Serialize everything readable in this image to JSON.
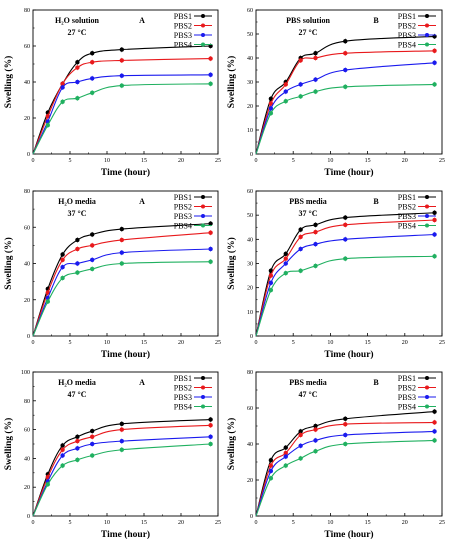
{
  "figure": {
    "chart_data": [
      {
        "type": "line",
        "panel_letter": "A",
        "annotation": [
          "H₂O solution",
          "27 °C"
        ],
        "xlabel": "Time (hour)",
        "ylabel": "Swelling (%)",
        "xlim": [
          0,
          25
        ],
        "ylim": [
          0,
          80
        ],
        "x_ticks": [
          0,
          5,
          10,
          15,
          20,
          25
        ],
        "y_ticks": [
          0,
          20,
          40,
          60,
          80
        ],
        "x": [
          0,
          2,
          4,
          6,
          8,
          12,
          24
        ],
        "series": [
          {
            "name": "PBS1",
            "color": "#000000",
            "values": [
              0,
              23,
              39,
              51,
              56,
              58,
              60
            ]
          },
          {
            "name": "PBS2",
            "color": "#e8191c",
            "values": [
              0,
              21,
              39,
              48,
              51,
              52,
              53
            ]
          },
          {
            "name": "PBS3",
            "color": "#1a1aee",
            "values": [
              0,
              18,
              37,
              40,
              42,
              43.5,
              44
            ]
          },
          {
            "name": "PBS4",
            "color": "#20b060",
            "values": [
              0,
              16,
              29,
              31,
              34,
              38,
              39
            ]
          }
        ]
      },
      {
        "type": "line",
        "panel_letter": "B",
        "annotation": [
          "PBS solution",
          "27 °C"
        ],
        "xlabel": "Time (hour)",
        "ylabel": "Swelling (%)",
        "xlim": [
          0,
          25
        ],
        "ylim": [
          0,
          60
        ],
        "x_ticks": [
          0,
          5,
          10,
          15,
          20,
          25
        ],
        "y_ticks": [
          0,
          10,
          20,
          30,
          40,
          50,
          60
        ],
        "x": [
          0,
          2,
          4,
          6,
          8,
          12,
          24
        ],
        "series": [
          {
            "name": "PBS1",
            "color": "#000000",
            "values": [
              0,
              23,
              30,
              40,
              42,
              47,
              49
            ]
          },
          {
            "name": "PBS2",
            "color": "#e8191c",
            "values": [
              0,
              21,
              29,
              39,
              40,
              42,
              43
            ]
          },
          {
            "name": "PBS3",
            "color": "#1a1aee",
            "values": [
              0,
              19,
              26,
              29,
              31,
              35,
              38
            ]
          },
          {
            "name": "PBS4",
            "color": "#20b060",
            "values": [
              0,
              17,
              22,
              24,
              26,
              28,
              29
            ]
          }
        ]
      },
      {
        "type": "line",
        "panel_letter": "A",
        "annotation": [
          "H₂O media",
          "37 °C"
        ],
        "xlabel": "Time (hour)",
        "ylabel": "Swelling (%)",
        "xlim": [
          0,
          25
        ],
        "ylim": [
          0,
          80
        ],
        "x_ticks": [
          0,
          5,
          10,
          15,
          20,
          25
        ],
        "y_ticks": [
          0,
          20,
          40,
          60,
          80
        ],
        "x": [
          0,
          2,
          4,
          6,
          8,
          12,
          24
        ],
        "series": [
          {
            "name": "PBS1",
            "color": "#000000",
            "values": [
              0,
              26,
              45,
              53,
              56,
              59,
              62
            ]
          },
          {
            "name": "PBS2",
            "color": "#e8191c",
            "values": [
              0,
              24,
              42,
              48,
              50,
              53,
              57
            ]
          },
          {
            "name": "PBS3",
            "color": "#1a1aee",
            "values": [
              0,
              21,
              38,
              40,
              42,
              46,
              48
            ]
          },
          {
            "name": "PBS4",
            "color": "#20b060",
            "values": [
              0,
              19,
              32,
              35,
              37,
              40,
              41
            ]
          }
        ]
      },
      {
        "type": "line",
        "panel_letter": "B",
        "annotation": [
          "PBS media",
          "37 °C"
        ],
        "xlabel": "Time (hour)",
        "ylabel": "Swelling (%)",
        "xlim": [
          0,
          25
        ],
        "ylim": [
          0,
          60
        ],
        "x_ticks": [
          0,
          5,
          10,
          15,
          20,
          25
        ],
        "y_ticks": [
          0,
          10,
          20,
          30,
          40,
          50,
          60
        ],
        "x": [
          0,
          2,
          4,
          6,
          8,
          12,
          24
        ],
        "series": [
          {
            "name": "PBS1",
            "color": "#000000",
            "values": [
              0,
              27,
              34,
              44,
              46,
              49,
              51
            ]
          },
          {
            "name": "PBS2",
            "color": "#e8191c",
            "values": [
              0,
              25,
              32,
              41,
              43,
              46,
              48
            ]
          },
          {
            "name": "PBS3",
            "color": "#1a1aee",
            "values": [
              0,
              22,
              30,
              36,
              38,
              40,
              42
            ]
          },
          {
            "name": "PBS4",
            "color": "#20b060",
            "values": [
              0,
              19,
              26,
              27,
              29,
              32,
              33
            ]
          }
        ]
      },
      {
        "type": "line",
        "panel_letter": "A",
        "annotation": [
          "H₂O media",
          "47 °C"
        ],
        "xlabel": "Time (hour)",
        "ylabel": "Swelling (%)",
        "xlim": [
          0,
          25
        ],
        "ylim": [
          0,
          100
        ],
        "x_ticks": [
          0,
          5,
          10,
          15,
          20,
          25
        ],
        "y_ticks": [
          0,
          20,
          40,
          60,
          80,
          100
        ],
        "x": [
          0,
          2,
          4,
          6,
          8,
          12,
          24
        ],
        "series": [
          {
            "name": "PBS1",
            "color": "#000000",
            "values": [
              0,
              29,
              49,
              55,
              59,
              64,
              67
            ]
          },
          {
            "name": "PBS2",
            "color": "#e8191c",
            "values": [
              0,
              27,
              46,
              52,
              55,
              60,
              63
            ]
          },
          {
            "name": "PBS3",
            "color": "#1a1aee",
            "values": [
              0,
              24,
              42,
              47,
              50,
              52,
              55
            ]
          },
          {
            "name": "PBS4",
            "color": "#20b060",
            "values": [
              0,
              22,
              35,
              39,
              42,
              46,
              50
            ]
          }
        ]
      },
      {
        "type": "line",
        "panel_letter": "B",
        "annotation": [
          "PBS media",
          "47 °C"
        ],
        "xlabel": "Time (hour)",
        "ylabel": "Swelling (%)",
        "xlim": [
          0,
          25
        ],
        "ylim": [
          0,
          80
        ],
        "x_ticks": [
          0,
          5,
          10,
          15,
          20,
          25
        ],
        "y_ticks": [
          0,
          20,
          40,
          60,
          80
        ],
        "x": [
          0,
          2,
          4,
          6,
          8,
          12,
          24
        ],
        "series": [
          {
            "name": "PBS1",
            "color": "#000000",
            "values": [
              0,
              31,
              38,
              47,
              50,
              54,
              58
            ]
          },
          {
            "name": "PBS2",
            "color": "#e8191c",
            "values": [
              0,
              28,
              35,
              45,
              48,
              51,
              52
            ]
          },
          {
            "name": "PBS3",
            "color": "#1a1aee",
            "values": [
              0,
              25,
              33,
              39,
              42,
              45,
              47
            ]
          },
          {
            "name": "PBS4",
            "color": "#20b060",
            "values": [
              0,
              21,
              28,
              32,
              36,
              40,
              42
            ]
          }
        ]
      }
    ]
  }
}
